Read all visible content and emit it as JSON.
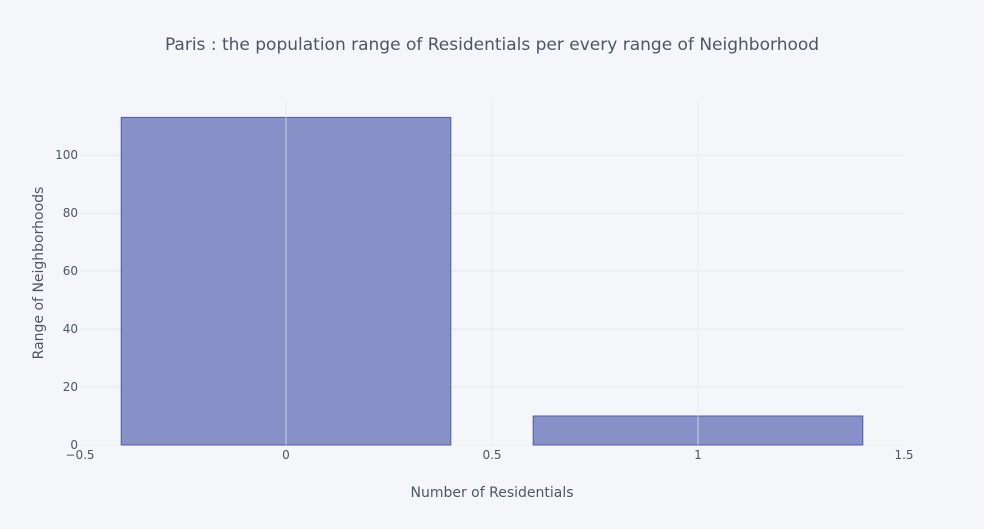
{
  "chart_data": {
    "type": "bar",
    "title": "Paris : the population range of Residentials per every range of Neighborhood",
    "xlabel": "Number of Residentials",
    "ylabel": "Range of Neighborhoods",
    "x": [
      0,
      1
    ],
    "values": [
      113,
      10
    ],
    "xlim": [
      -0.5,
      1.5
    ],
    "ylim": [
      0,
      119
    ],
    "x_ticks": [
      -0.5,
      0,
      0.5,
      1,
      1.5
    ],
    "x_tick_labels": [
      "−0.5",
      "0",
      "0.5",
      "1",
      "1.5"
    ],
    "y_ticks": [
      0,
      20,
      40,
      60,
      80,
      100
    ],
    "y_tick_labels": [
      "0",
      "20",
      "40",
      "60",
      "80",
      "100"
    ],
    "grid": true,
    "legend": "none",
    "colors": {
      "background": "#f5f6f9",
      "bar_fill": "#8791c8",
      "bar_stroke": "#4f5ba4",
      "grid": "#e6e8ef",
      "axis_text": "#4d5663",
      "title_text": "#4d5663"
    }
  }
}
